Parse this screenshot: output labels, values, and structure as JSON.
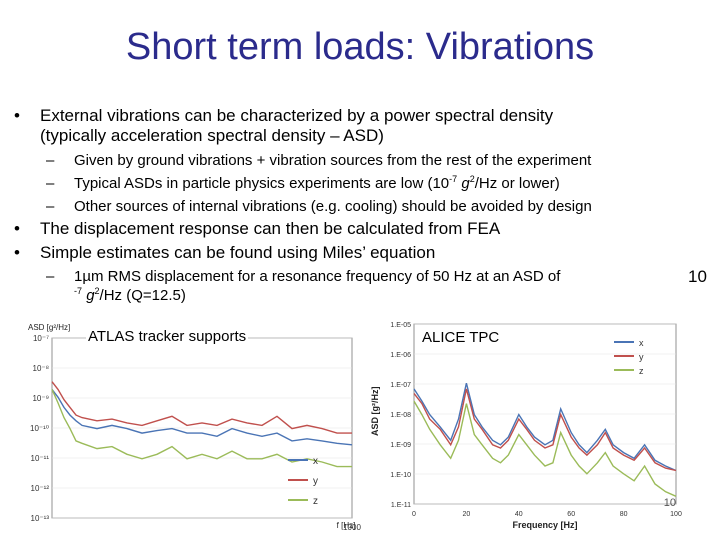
{
  "slide": {
    "title": "Short term loads: Vibrations",
    "bullet1_line1": "External vibrations can be characterized by a power spectral density",
    "bullet1_line2": "(typically acceleration spectral density – ASD)",
    "sub1": "Given by ground vibrations + vibration sources from the rest of the experiment",
    "sub2_a": "Typical ASDs in particle physics experiments are low (10",
    "sub2_exp": "-7",
    "sub2_g": "g",
    "sub2_g_exp": "2",
    "sub2_b": "/Hz or lower)",
    "sub3": "Other sources of internal vibrations (e.g. cooling) should be avoided by design",
    "bullet2": "The displacement response can then be calculated from FEA",
    "bullet3": "Simple estimates can be found using Miles’ equation",
    "sub4_line1": "1µm RMS displacement for a resonance frequency of 50 Hz at an ASD of",
    "sub4_ten": "10",
    "sub4_exp": "-7",
    "sub4_g": "g",
    "sub4_g_exp": "2",
    "sub4_b": "/Hz (Q=12.5)",
    "page_number": "10",
    "bullet_char": "•",
    "dash_char": "–"
  },
  "charts": {
    "atlas_label": "ATLAS tracker supports",
    "alice_label": "ALICE TPC",
    "colors": {
      "x": "#4a74b5",
      "y": "#c0504d",
      "z": "#9bbb59"
    }
  },
  "chart_data": [
    {
      "type": "line",
      "title": "",
      "ylabel": "ASD [g²/Hz]",
      "xlabel": "f [Hz]",
      "y_log": true,
      "ylim": [
        1e-13,
        1e-06
      ],
      "xlim": [
        0,
        1000
      ],
      "yticks": [
        "10⁻⁷",
        "10⁻⁸",
        "10⁻⁹",
        "10⁻¹⁰",
        "10⁻¹¹",
        "10⁻¹²",
        "10⁻¹³"
      ],
      "xticks": [
        "1000"
      ],
      "legend_position": "bottom-right",
      "series": [
        {
          "name": "x",
          "x": [
            0,
            20,
            40,
            60,
            80,
            100,
            150,
            200,
            250,
            300,
            350,
            400,
            450,
            500,
            550,
            600,
            650,
            700,
            750,
            800,
            850,
            900,
            950,
            1000
          ],
          "y": [
            1e-08,
            5e-09,
            2e-09,
            1e-09,
            6e-10,
            4e-10,
            3e-10,
            4e-10,
            3e-10,
            2e-10,
            2.5e-10,
            3e-10,
            2e-10,
            2e-10,
            1.5e-10,
            3e-10,
            2e-10,
            1.5e-10,
            2e-10,
            1e-10,
            1.2e-10,
            1e-10,
            8e-11,
            7e-11
          ]
        },
        {
          "name": "y",
          "x": [
            0,
            20,
            40,
            60,
            80,
            100,
            150,
            200,
            250,
            300,
            350,
            400,
            450,
            500,
            550,
            600,
            650,
            700,
            750,
            800,
            850,
            900,
            950,
            1000
          ],
          "y": [
            2e-08,
            1e-08,
            4e-09,
            2e-09,
            1e-09,
            8e-10,
            6e-10,
            7e-10,
            5e-10,
            4e-10,
            6e-10,
            9e-10,
            4e-10,
            5e-10,
            4e-10,
            7e-10,
            5e-10,
            4e-10,
            9e-10,
            3e-10,
            4e-10,
            3e-10,
            2e-10,
            2e-10
          ]
        },
        {
          "name": "z",
          "x": [
            0,
            20,
            40,
            60,
            80,
            100,
            150,
            200,
            250,
            300,
            350,
            400,
            450,
            500,
            550,
            600,
            650,
            700,
            750,
            800,
            850,
            900,
            950,
            1000
          ],
          "y": [
            1e-08,
            3e-09,
            8e-10,
            3e-10,
            1e-10,
            8e-11,
            5e-11,
            6e-11,
            3e-11,
            2e-11,
            3e-11,
            6e-11,
            2e-11,
            3e-11,
            2e-11,
            4e-11,
            2e-11,
            2e-11,
            3e-11,
            1.5e-11,
            2e-11,
            1.5e-11,
            1e-11,
            1e-11
          ]
        }
      ]
    },
    {
      "type": "line",
      "title": "",
      "ylabel": "ASD [g²/Hz]",
      "xlabel": "Frequency [Hz]",
      "y_log": true,
      "ylim": [
        1e-11,
        0.0001
      ],
      "xlim": [
        0,
        100
      ],
      "yticks": [
        "1.E-05",
        "1.E-06",
        "1.E-07",
        "1.E-08",
        "1.E-09",
        "1.E-10",
        "1.E-11"
      ],
      "xticks": [
        "0",
        "20",
        "40",
        "60",
        "80",
        "100"
      ],
      "legend_position": "top-right",
      "series": [
        {
          "name": "x",
          "x": [
            0,
            3,
            6,
            10,
            14,
            17,
            20,
            23,
            26,
            30,
            33,
            36,
            40,
            43,
            46,
            50,
            53,
            56,
            60,
            63,
            66,
            70,
            73,
            76,
            80,
            84,
            88,
            92,
            96,
            100
          ],
          "y": [
            3e-07,
            1e-07,
            3e-08,
            1e-08,
            3e-09,
            2e-08,
            5e-07,
            3e-08,
            1e-08,
            3e-09,
            2e-09,
            4e-09,
            3e-08,
            1e-08,
            4e-09,
            2e-09,
            3e-09,
            5e-08,
            6e-09,
            2e-09,
            1e-09,
            3e-09,
            8e-09,
            2e-09,
            1e-09,
            6e-10,
            2e-09,
            5e-10,
            3e-10,
            2e-10
          ]
        },
        {
          "name": "y",
          "x": [
            0,
            3,
            6,
            10,
            14,
            17,
            20,
            23,
            26,
            30,
            33,
            36,
            40,
            43,
            46,
            50,
            53,
            56,
            60,
            63,
            66,
            70,
            73,
            76,
            80,
            84,
            88,
            92,
            96,
            100
          ],
          "y": [
            2e-07,
            8e-08,
            2e-08,
            8e-09,
            2e-09,
            1e-08,
            3e-07,
            2e-08,
            8e-09,
            2e-09,
            1.5e-09,
            3e-09,
            2e-08,
            8e-09,
            3e-09,
            1.5e-09,
            2e-09,
            3e-08,
            4e-09,
            1.5e-09,
            8e-10,
            2e-09,
            6e-09,
            1.5e-09,
            8e-10,
            5e-10,
            1.5e-09,
            4e-10,
            2.5e-10,
            2e-10
          ]
        },
        {
          "name": "z",
          "x": [
            0,
            3,
            6,
            10,
            14,
            17,
            20,
            23,
            26,
            30,
            33,
            36,
            40,
            43,
            46,
            50,
            53,
            56,
            60,
            63,
            66,
            70,
            73,
            76,
            80,
            84,
            88,
            92,
            96,
            100
          ],
          "y": [
            1e-07,
            3e-08,
            8e-09,
            2e-09,
            6e-10,
            3e-09,
            8e-08,
            5e-09,
            2e-09,
            6e-10,
            4e-10,
            8e-10,
            5e-09,
            2e-09,
            8e-10,
            3e-10,
            4e-10,
            6e-09,
            8e-10,
            3e-10,
            1.5e-10,
            4e-10,
            1e-09,
            3e-10,
            1.5e-10,
            8e-11,
            3e-10,
            6e-11,
            3e-11,
            2e-11
          ]
        }
      ]
    }
  ]
}
